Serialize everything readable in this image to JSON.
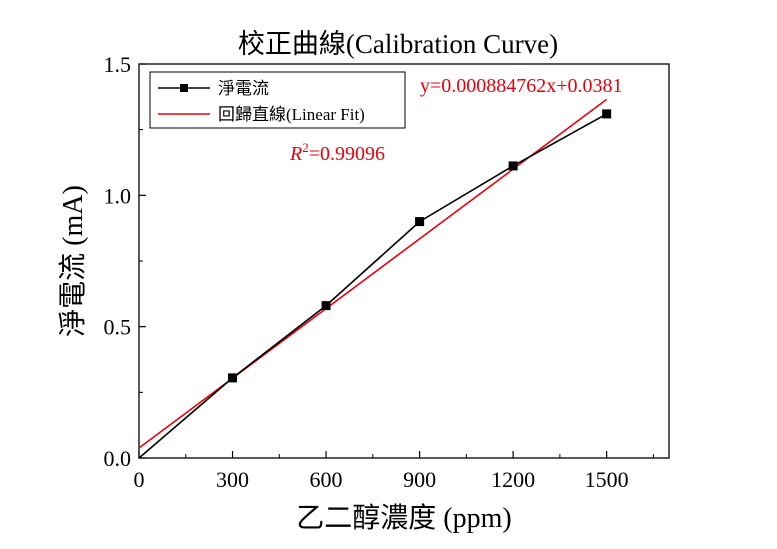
{
  "chart_data": {
    "type": "line",
    "title": "校正曲線(Calibration Curve)",
    "xlabel": "乙二醇濃度 (ppm)",
    "ylabel": "淨電流 (mA)",
    "xlim": [
      0,
      1700
    ],
    "ylim": [
      0,
      1.5
    ],
    "x_ticks": [
      0,
      300,
      600,
      900,
      1200,
      1500
    ],
    "y_ticks": [
      0.0,
      0.5,
      1.0,
      1.5
    ],
    "x_tick_labels": [
      "0",
      "300",
      "600",
      "900",
      "1200",
      "1500"
    ],
    "y_tick_labels": [
      "0.0",
      "0.5",
      "1.0",
      "1.5"
    ],
    "grid": false,
    "legend_position": "top-left",
    "series": [
      {
        "name": "淨電流",
        "color": "#000000",
        "marker": "square",
        "x": [
          0,
          300,
          600,
          900,
          1200,
          1500
        ],
        "y": [
          0.0,
          0.305,
          0.58,
          0.9,
          1.112,
          1.31
        ]
      },
      {
        "name": "回歸直線(Linear Fit)",
        "color": "#e8000b",
        "marker": "none",
        "x": [
          0,
          1500
        ],
        "y": [
          0.0381,
          1.3652
        ]
      }
    ],
    "annotations": {
      "equation": "y=0.000884762x+0.0381",
      "r2_symbol": "R",
      "r2_exp": "2",
      "r2_value": "=0.99096",
      "color": "#e8000b"
    }
  }
}
